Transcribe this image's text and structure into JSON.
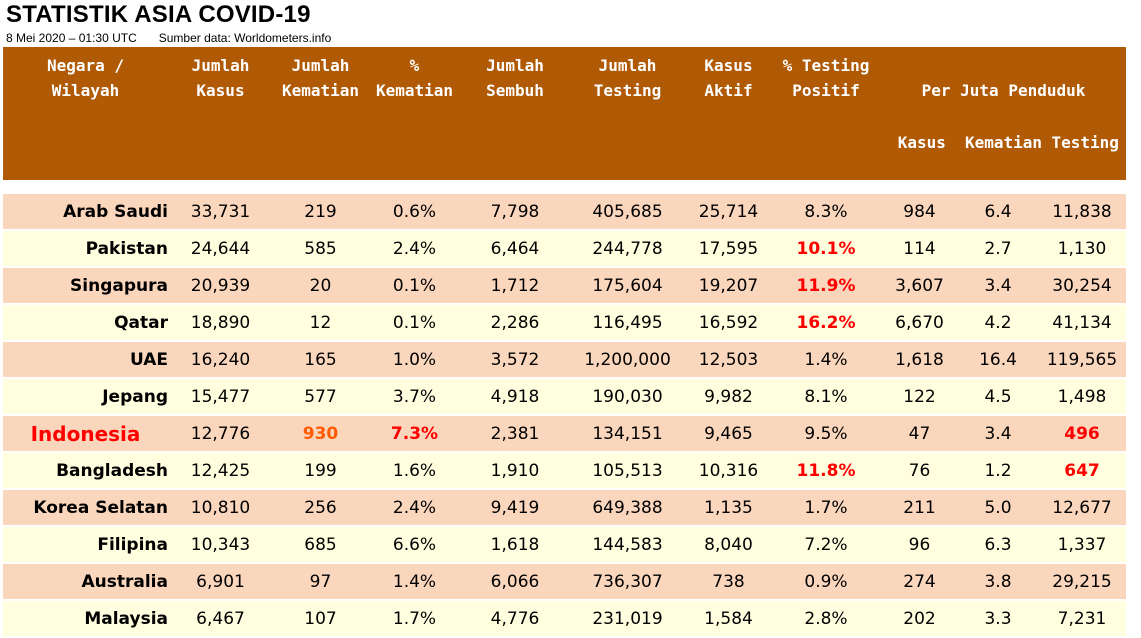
{
  "title": "STATISTIK ASIA COVID-19",
  "date": "8 Mei 2020 – 01:30 UTC",
  "source": "Sumber data: Worldometers.info",
  "headers": {
    "country": "Negara /\nWilayah",
    "cases": "Jumlah\nKasus",
    "deaths": "Jumlah\nKematian",
    "death_pct": "%\nKematian",
    "recovered": "Jumlah\nSembuh",
    "tests": "Jumlah\nTesting",
    "active": "Kasus\nAktif",
    "positivity": "% Testing\nPositif",
    "per_million": "Per Juta Penduduk",
    "pm_cases": "Kasus",
    "pm_deaths": "Kematian",
    "pm_tests": "Testing"
  },
  "colors": {
    "header_bg": "#b05a06",
    "row_peach": "#fad6bd",
    "row_cream": "#ffffe0",
    "highlight_red": "#ff0000",
    "highlight_orange": "#ff5a00"
  },
  "rows": [
    {
      "name": "Arab Saudi",
      "cases": "33,731",
      "deaths": "219",
      "death_pct": "0.6%",
      "recovered": "7,798",
      "tests": "405,685",
      "active": "25,714",
      "positivity": "8.3%",
      "pm_cases": "984",
      "pm_deaths": "6.4",
      "pm_tests": "11,838"
    },
    {
      "name": "Pakistan",
      "cases": "24,644",
      "deaths": "585",
      "death_pct": "2.4%",
      "recovered": "6,464",
      "tests": "244,778",
      "active": "17,595",
      "positivity": "10.1%",
      "pm_cases": "114",
      "pm_deaths": "2.7",
      "pm_tests": "1,130"
    },
    {
      "name": "Singapura",
      "cases": "20,939",
      "deaths": "20",
      "death_pct": "0.1%",
      "recovered": "1,712",
      "tests": "175,604",
      "active": "19,207",
      "positivity": "11.9%",
      "pm_cases": "3,607",
      "pm_deaths": "3.4",
      "pm_tests": "30,254"
    },
    {
      "name": "Qatar",
      "cases": "18,890",
      "deaths": "12",
      "death_pct": "0.1%",
      "recovered": "2,286",
      "tests": "116,495",
      "active": "16,592",
      "positivity": "16.2%",
      "pm_cases": "6,670",
      "pm_deaths": "4.2",
      "pm_tests": "41,134"
    },
    {
      "name": "UAE",
      "cases": "16,240",
      "deaths": "165",
      "death_pct": "1.0%",
      "recovered": "3,572",
      "tests": "1,200,000",
      "active": "12,503",
      "positivity": "1.4%",
      "pm_cases": "1,618",
      "pm_deaths": "16.4",
      "pm_tests": "119,565"
    },
    {
      "name": "Jepang",
      "cases": "15,477",
      "deaths": "577",
      "death_pct": "3.7%",
      "recovered": "4,918",
      "tests": "190,030",
      "active": "9,982",
      "positivity": "8.1%",
      "pm_cases": "122",
      "pm_deaths": "4.5",
      "pm_tests": "1,498"
    },
    {
      "name": "Indonesia",
      "cases": "12,776",
      "deaths": "930",
      "death_pct": "7.3%",
      "recovered": "2,381",
      "tests": "134,151",
      "active": "9,465",
      "positivity": "9.5%",
      "pm_cases": "47",
      "pm_deaths": "3.4",
      "pm_tests": "496"
    },
    {
      "name": "Bangladesh",
      "cases": "12,425",
      "deaths": "199",
      "death_pct": "1.6%",
      "recovered": "1,910",
      "tests": "105,513",
      "active": "10,316",
      "positivity": "11.8%",
      "pm_cases": "76",
      "pm_deaths": "1.2",
      "pm_tests": "647"
    },
    {
      "name": "Korea Selatan",
      "cases": "10,810",
      "deaths": "256",
      "death_pct": "2.4%",
      "recovered": "9,419",
      "tests": "649,388",
      "active": "1,135",
      "positivity": "1.7%",
      "pm_cases": "211",
      "pm_deaths": "5.0",
      "pm_tests": "12,677"
    },
    {
      "name": "Filipina",
      "cases": "10,343",
      "deaths": "685",
      "death_pct": "6.6%",
      "recovered": "1,618",
      "tests": "144,583",
      "active": "8,040",
      "positivity": "7.2%",
      "pm_cases": "96",
      "pm_deaths": "6.3",
      "pm_tests": "1,337"
    },
    {
      "name": "Australia",
      "cases": "6,901",
      "deaths": "97",
      "death_pct": "1.4%",
      "recovered": "6,066",
      "tests": "736,307",
      "active": "738",
      "positivity": "0.9%",
      "pm_cases": "274",
      "pm_deaths": "3.8",
      "pm_tests": "29,215"
    },
    {
      "name": "Malaysia",
      "cases": "6,467",
      "deaths": "107",
      "death_pct": "1.7%",
      "recovered": "4,776",
      "tests": "231,019",
      "active": "1,584",
      "positivity": "2.8%",
      "pm_cases": "202",
      "pm_deaths": "3.3",
      "pm_tests": "7,231"
    }
  ]
}
